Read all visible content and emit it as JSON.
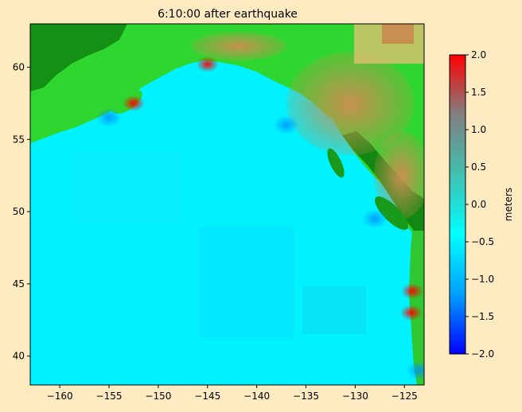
{
  "figure": {
    "background": "#ffebc2"
  },
  "chart_data": {
    "type": "heatmap",
    "title": "6:10:00 after earthquake",
    "xlabel": "",
    "ylabel": "",
    "xlim": [
      -163,
      -123
    ],
    "ylim": [
      38,
      63
    ],
    "xticks": [
      -160,
      -155,
      -150,
      -145,
      -140,
      -135,
      -130,
      -125
    ],
    "xtick_labels": [
      "−160",
      "−155",
      "−150",
      "−145",
      "−140",
      "−135",
      "−130",
      "−125"
    ],
    "yticks": [
      40,
      45,
      50,
      55,
      60
    ],
    "ytick_labels": [
      "40",
      "45",
      "50",
      "55",
      "60"
    ],
    "grid": false,
    "colorbar": {
      "label": "meters",
      "range": [
        -2.0,
        2.0
      ],
      "ticks": [
        -2.0,
        -1.5,
        -1.0,
        -0.5,
        0.0,
        0.5,
        1.0,
        1.5,
        2.0
      ],
      "tick_labels": [
        "−2.0",
        "−1.5",
        "−1.0",
        "−0.5",
        "0.0",
        "0.5",
        "1.0",
        "1.5",
        "2.0"
      ],
      "colors": [
        "#0000ff",
        "#00a0ff",
        "#00ffff",
        "#40c0b0",
        "#808080",
        "#ff0000"
      ]
    },
    "colors": {
      "ocean": "#00ffff",
      "land_low": "#108010",
      "land_mid": "#30e030",
      "land_high": "#c89050",
      "wave_positive": "#ff0000",
      "wave_negative": "#0090ff"
    },
    "positive_wave_regions": [
      {
        "lon": -152.5,
        "lat": 57.5,
        "amplitude_m": 2.0
      },
      {
        "lon": -145.0,
        "lat": 60.2,
        "amplitude_m": 2.0
      },
      {
        "lon": -124.2,
        "lat": 44.5,
        "amplitude_m": 2.0
      },
      {
        "lon": -124.3,
        "lat": 43.0,
        "amplitude_m": 2.0
      }
    ],
    "negative_wave_regions": [
      {
        "lon": -155.0,
        "lat": 56.5,
        "amplitude_m": -0.6
      },
      {
        "lon": -137.0,
        "lat": 56.0,
        "amplitude_m": -0.4
      },
      {
        "lon": -128.0,
        "lat": 49.5,
        "amplitude_m": -0.6
      },
      {
        "lon": -123.5,
        "lat": 39.0,
        "amplitude_m": -1.5
      }
    ]
  }
}
